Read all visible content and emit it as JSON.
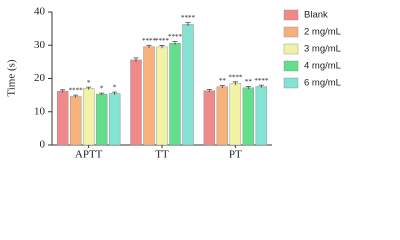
{
  "chart_data": {
    "type": "bar",
    "y_label": "Time (s)",
    "categories": [
      "APTT",
      "TT",
      "PT"
    ],
    "ylim": [
      0,
      40
    ],
    "yticks": [
      0,
      10,
      20,
      30,
      40
    ],
    "series": [
      {
        "name": "Blank",
        "color": "#f08a8a",
        "values": [
          16.2,
          25.6,
          16.3
        ],
        "errors": [
          0.4,
          0.6,
          0.4
        ],
        "labels": [
          null,
          null,
          null
        ]
      },
      {
        "name": "2 mg/mL",
        "color": "#f7b27c",
        "values": [
          14.6,
          29.6,
          17.5
        ],
        "errors": [
          0.4,
          0.4,
          0.4
        ],
        "labels": [
          "****",
          "****",
          "**"
        ]
      },
      {
        "name": "3 mg/mL",
        "color": "#f2f2a6",
        "values": [
          17.0,
          29.5,
          18.5
        ],
        "errors": [
          0.4,
          0.4,
          0.5
        ],
        "labels": [
          "*",
          "****",
          "****"
        ]
      },
      {
        "name": "4 mg/mL",
        "color": "#62de8c",
        "values": [
          15.3,
          30.6,
          17.2
        ],
        "errors": [
          0.3,
          0.5,
          0.4
        ],
        "labels": [
          "*",
          "****",
          "**"
        ]
      },
      {
        "name": "6 mg/mL",
        "color": "#86e2d2",
        "values": [
          15.5,
          36.3,
          17.6
        ],
        "errors": [
          0.4,
          0.5,
          0.4
        ],
        "labels": [
          "*",
          "****",
          "****"
        ]
      }
    ]
  }
}
